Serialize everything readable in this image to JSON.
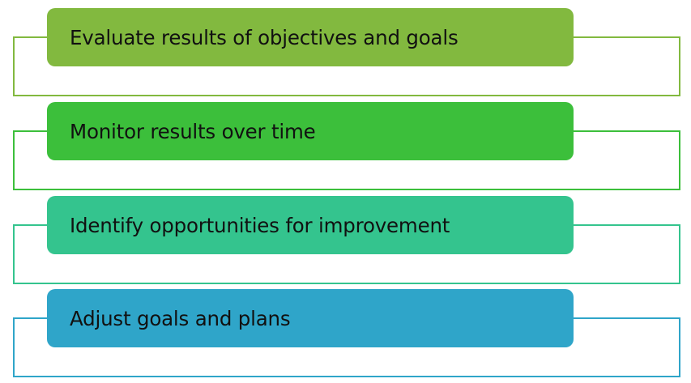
{
  "steps": [
    {
      "label": "Evaluate results of objectives and goals",
      "color": "#82b93f"
    },
    {
      "label": "Monitor results over time",
      "color": "#3cbf3b"
    },
    {
      "label": "Identify opportunities for improvement",
      "color": "#34c48e"
    },
    {
      "label": "Adjust goals and plans",
      "color": "#2fa5c9"
    }
  ]
}
